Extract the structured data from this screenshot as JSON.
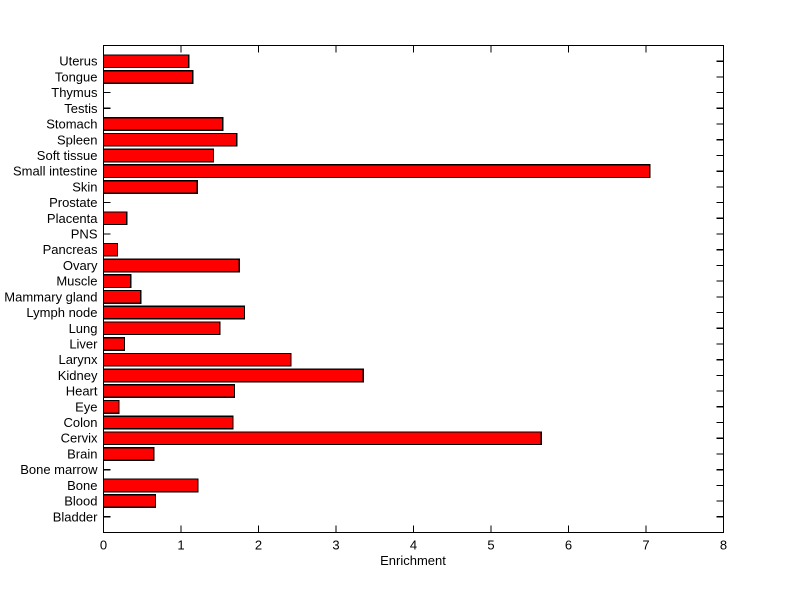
{
  "figure": {
    "background_color": "#ffffff"
  },
  "chart_data": {
    "type": "bar",
    "orientation": "horizontal",
    "title": "",
    "xlabel": "Enrichment",
    "ylabel": "",
    "xlim": [
      0,
      8
    ],
    "xticks": [
      0,
      1,
      2,
      3,
      4,
      5,
      6,
      7,
      8
    ],
    "grid": false,
    "legend": null,
    "bar_color": "#ff0000",
    "bar_edge_color": "#000000",
    "axis_color": "#000000",
    "categories_top_to_bottom": [
      "Uterus",
      "Tongue",
      "Thymus",
      "Testis",
      "Stomach",
      "Spleen",
      "Soft tissue",
      "Small intestine",
      "Skin",
      "Prostate",
      "Placenta",
      "PNS",
      "Pancreas",
      "Ovary",
      "Muscle",
      "Mammary gland",
      "Lymph node",
      "Lung",
      "Liver",
      "Larynx",
      "Kidney",
      "Heart",
      "Eye",
      "Colon",
      "Cervix",
      "Brain",
      "Bone marrow",
      "Bone",
      "Blood",
      "Bladder"
    ],
    "values": [
      1.1,
      1.15,
      0,
      0,
      1.54,
      1.72,
      1.42,
      7.05,
      1.21,
      0,
      0.3,
      0,
      0.18,
      1.75,
      0.35,
      0.48,
      1.82,
      1.5,
      0.27,
      2.42,
      3.35,
      1.69,
      0.2,
      1.67,
      5.65,
      0.65,
      0,
      1.22,
      0.67,
      0
    ]
  }
}
